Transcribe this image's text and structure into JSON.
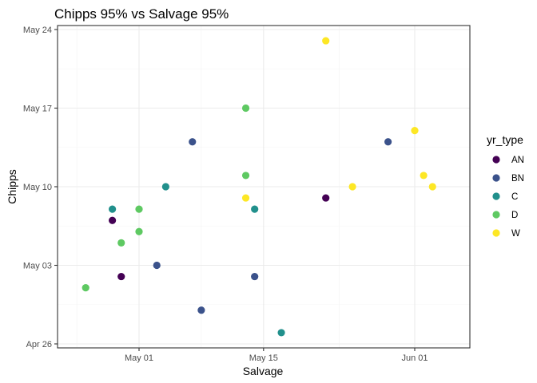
{
  "chart_data": {
    "type": "scatter",
    "title": "Chipps 95% vs Salvage 95%",
    "xlabel": "Salvage",
    "ylabel": "Chipps",
    "xlim": [
      "2021-04-25",
      "2021-06-03"
    ],
    "ylim": [
      "2021-04-26",
      "2021-05-24"
    ],
    "x_ticks": [
      {
        "value": "2021-05-01",
        "label": "May 01"
      },
      {
        "value": "2021-05-15",
        "label": "May 15"
      },
      {
        "value": "2021-06-01",
        "label": "Jun 01"
      }
    ],
    "y_ticks": [
      {
        "value": "2021-04-26",
        "label": "Apr 26"
      },
      {
        "value": "2021-05-03",
        "label": "May 03"
      },
      {
        "value": "2021-05-10",
        "label": "May 10"
      },
      {
        "value": "2021-05-17",
        "label": "May 17"
      },
      {
        "value": "2021-05-24",
        "label": "May 24"
      }
    ],
    "grid": true,
    "legend": {
      "title": "yr_type",
      "position": "right"
    },
    "series": [
      {
        "name": "AN",
        "color": "#440154",
        "points": [
          {
            "x": "2021-04-28",
            "y": "2021-05-07"
          },
          {
            "x": "2021-04-29",
            "y": "2021-05-02"
          },
          {
            "x": "2021-05-22",
            "y": "2021-05-09"
          }
        ]
      },
      {
        "name": "BN",
        "color": "#3b528b",
        "points": [
          {
            "x": "2021-05-03",
            "y": "2021-05-03"
          },
          {
            "x": "2021-05-07",
            "y": "2021-05-14"
          },
          {
            "x": "2021-05-08",
            "y": "2021-04-29"
          },
          {
            "x": "2021-05-14",
            "y": "2021-05-02"
          },
          {
            "x": "2021-05-29",
            "y": "2021-05-14"
          }
        ]
      },
      {
        "name": "C",
        "color": "#21908c",
        "points": [
          {
            "x": "2021-04-28",
            "y": "2021-05-08"
          },
          {
            "x": "2021-05-04",
            "y": "2021-05-10"
          },
          {
            "x": "2021-05-14",
            "y": "2021-05-08"
          },
          {
            "x": "2021-05-17",
            "y": "2021-04-27"
          }
        ]
      },
      {
        "name": "D",
        "color": "#5ec962",
        "points": [
          {
            "x": "2021-04-25",
            "y": "2021-05-01"
          },
          {
            "x": "2021-04-29",
            "y": "2021-05-05"
          },
          {
            "x": "2021-05-01",
            "y": "2021-05-06"
          },
          {
            "x": "2021-05-01",
            "y": "2021-05-08"
          },
          {
            "x": "2021-05-13",
            "y": "2021-05-17"
          },
          {
            "x": "2021-05-13",
            "y": "2021-05-11"
          }
        ]
      },
      {
        "name": "W",
        "color": "#fde725",
        "points": [
          {
            "x": "2021-05-13",
            "y": "2021-05-09"
          },
          {
            "x": "2021-05-22",
            "y": "2021-05-23"
          },
          {
            "x": "2021-05-25",
            "y": "2021-05-10"
          },
          {
            "x": "2021-06-01",
            "y": "2021-05-15"
          },
          {
            "x": "2021-06-02",
            "y": "2021-05-11"
          },
          {
            "x": "2021-06-03",
            "y": "2021-05-10"
          }
        ]
      }
    ]
  }
}
